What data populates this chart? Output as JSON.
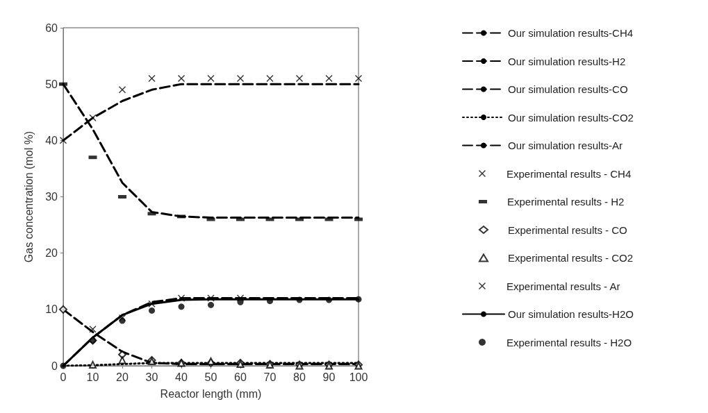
{
  "chart_data": {
    "type": "line",
    "xlabel": "Reactor length (mm)",
    "ylabel": "Gas concentration (mol %)",
    "x": [
      0,
      10,
      20,
      30,
      40,
      50,
      60,
      70,
      80,
      90,
      100
    ],
    "xlim": [
      0,
      100
    ],
    "xticks": [
      0,
      10,
      20,
      30,
      40,
      50,
      60,
      70,
      80,
      90,
      100
    ],
    "ylim": [
      0,
      60
    ],
    "yticks": [
      0,
      10,
      20,
      30,
      40,
      50,
      60
    ],
    "grid": false,
    "legend": "right",
    "series": [
      {
        "name": "Our simulation results-CH4",
        "color": "#000000",
        "line_style": "dashed",
        "marker": "none",
        "values": [
          0,
          5,
          9,
          11.3,
          12,
          12,
          12,
          12,
          12,
          12,
          12
        ]
      },
      {
        "name": "Our simulation results-H2",
        "color": "#000000",
        "line_style": "dashed",
        "marker": "none",
        "values": [
          50,
          42,
          32.5,
          27.3,
          26.5,
          26.3,
          26.3,
          26.3,
          26.3,
          26.3,
          26.3
        ]
      },
      {
        "name": "Our simulation results-CO",
        "color": "#000000",
        "line_style": "dashed",
        "marker": "none",
        "values": [
          10,
          6,
          2.5,
          0.5,
          0.3,
          0.3,
          0.3,
          0.3,
          0.3,
          0.3,
          0.3
        ]
      },
      {
        "name": "Our simulation results-CO2",
        "color": "#000000",
        "line_style": "dotted",
        "marker": "none",
        "values": [
          0,
          0.1,
          0.3,
          0.5,
          0.5,
          0.5,
          0.5,
          0.5,
          0.5,
          0.5,
          0.5
        ]
      },
      {
        "name": "Our simulation results-Ar",
        "color": "#000000",
        "line_style": "dashed",
        "marker": "none",
        "values": [
          40,
          44,
          47,
          49,
          50,
          50,
          50,
          50,
          50,
          50,
          50
        ]
      },
      {
        "name": "Experimental results - CH4",
        "type": "scatter",
        "color": "#000000",
        "marker": "cross",
        "values": [
          null,
          6.5,
          8.5,
          11,
          12,
          12,
          12,
          null,
          null,
          null,
          null
        ]
      },
      {
        "name": "Experimental results - H2",
        "type": "scatter",
        "color": "#000000",
        "marker": "square",
        "values": [
          50,
          37,
          30,
          27,
          26.5,
          26,
          26,
          26,
          26,
          26,
          26
        ]
      },
      {
        "name": "Experimental results - CO",
        "type": "scatter",
        "color": "#000000",
        "marker": "diamond",
        "values": [
          10,
          4.5,
          2,
          1,
          0.5,
          0.5,
          0.5,
          0.3,
          0.2,
          0.2,
          0.2
        ]
      },
      {
        "name": "Experimental results - CO2",
        "type": "scatter",
        "color": "#000000",
        "marker": "triangle",
        "values": [
          null,
          0.2,
          1,
          0.8,
          0.5,
          0.8,
          0.3,
          0.2,
          0,
          0,
          0
        ]
      },
      {
        "name": "Experimental results - Ar",
        "type": "scatter",
        "color": "#000000",
        "marker": "cross",
        "values": [
          40,
          44,
          49,
          51,
          51,
          51,
          51,
          51,
          51,
          51,
          51
        ]
      },
      {
        "name": "Our simulation results-H2O",
        "color": "#000000",
        "line_style": "solid",
        "marker": "none",
        "values": [
          0,
          5,
          9,
          11,
          11.7,
          11.8,
          11.8,
          11.8,
          11.8,
          11.8,
          11.8
        ]
      },
      {
        "name": "Experimental results - H2O",
        "type": "scatter",
        "color": "#000000",
        "marker": "circle",
        "values": [
          0,
          4.5,
          8,
          9.8,
          10.5,
          10.8,
          11.3,
          11.5,
          11.7,
          11.7,
          11.8
        ]
      }
    ]
  }
}
